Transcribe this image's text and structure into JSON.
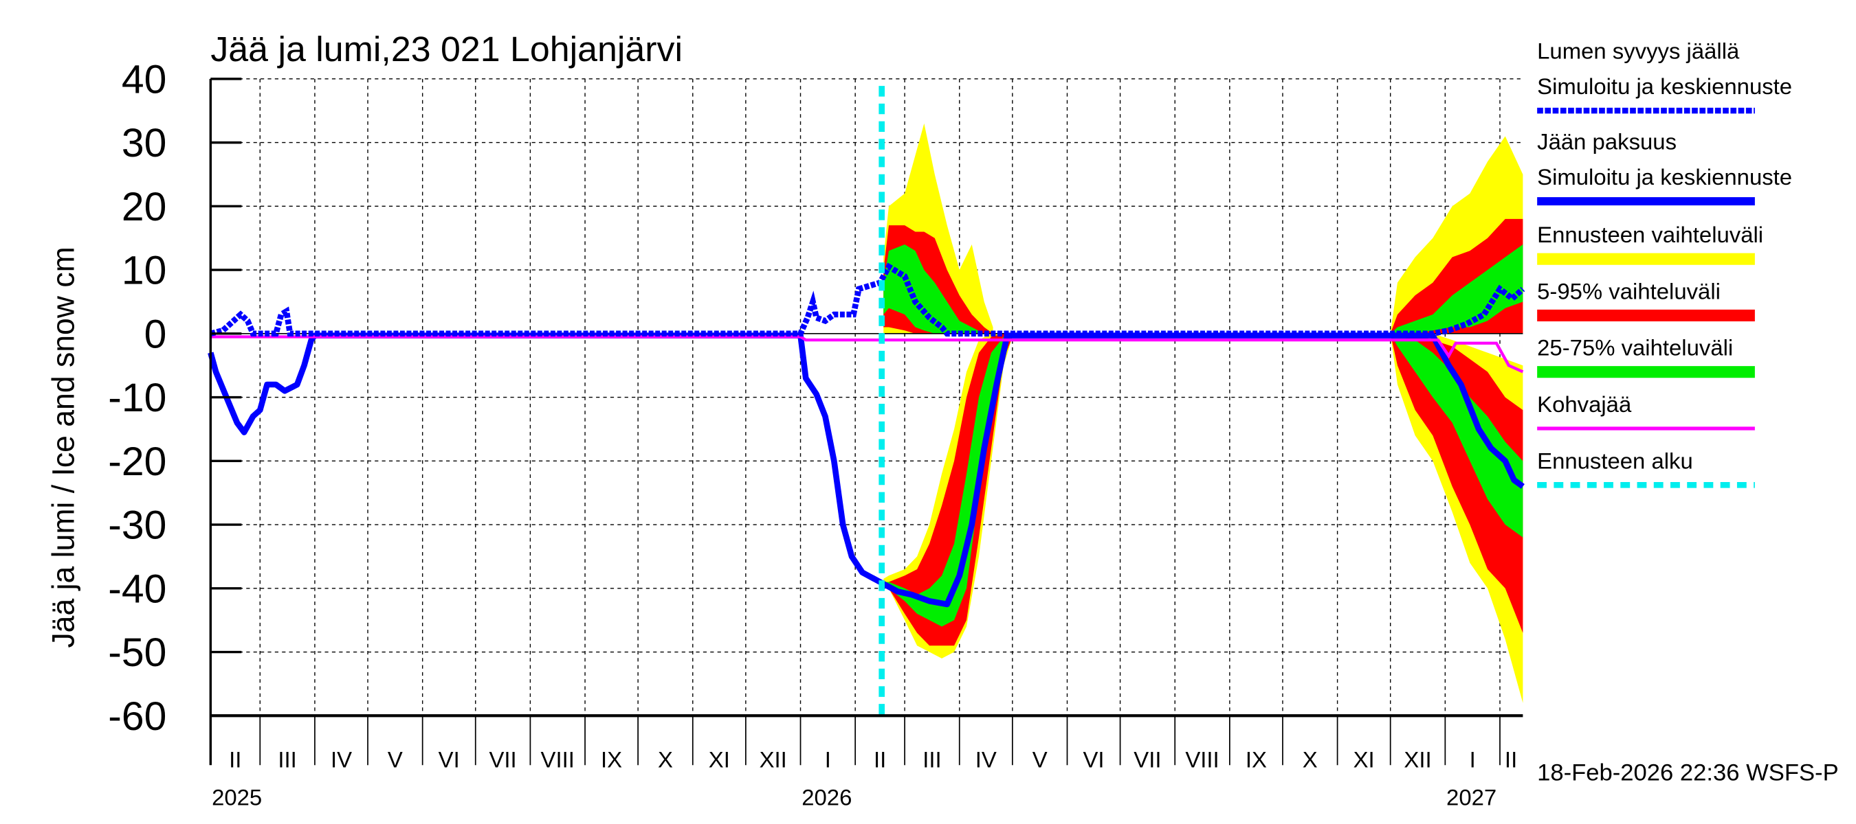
{
  "chart_data": {
    "type": "area",
    "title": "Jää ja lumi,23 021 Lohjanjärvi",
    "ylabel": "Jää ja lumi / Ice and snow    cm",
    "ylim": [
      -60,
      40
    ],
    "yticks": [
      40,
      30,
      20,
      10,
      0,
      -10,
      -20,
      -30,
      -40,
      -50,
      -60
    ],
    "xlim": [
      "2025-02-01",
      "2027-02-14"
    ],
    "grid": true,
    "legend_placement": "right",
    "month_labels": [
      "II",
      "III",
      "IV",
      "V",
      "VI",
      "VII",
      "VIII",
      "IX",
      "X",
      "XI",
      "XII",
      "I",
      "II",
      "III",
      "IV",
      "V",
      "VI",
      "VII",
      "VIII",
      "IX",
      "X",
      "XI",
      "XII",
      "I",
      "II"
    ],
    "year_labels": [
      {
        "date": "2025-02-01",
        "label": "2025"
      },
      {
        "date": "2026-01-01",
        "label": "2026"
      },
      {
        "date": "2027-01-01",
        "label": "2027"
      }
    ],
    "forecast_start": "2026-02-16",
    "footer": "18-Feb-2026 22:36 WSFS-P",
    "colors": {
      "snow": "#0000ff",
      "ice": "#0000ff",
      "range": "#ffff00",
      "p5_95": "#ff0000",
      "p25_75": "#00ee00",
      "slush": "#ff00ff",
      "forecast_start": "#00eeee"
    },
    "legend": [
      {
        "line1": "Lumen syvyys jäällä",
        "line2": "Simuloitu ja keskiennuste",
        "style": "dashed",
        "color": "#0000ff"
      },
      {
        "line1": "Jään paksuus",
        "line2": "Simuloitu ja keskiennuste",
        "style": "solid",
        "color": "#0000ff"
      },
      {
        "line1": "Ennusteen vaihteluväli",
        "style": "band",
        "color": "#ffff00"
      },
      {
        "line1": "5-95% vaihteluväli",
        "style": "band",
        "color": "#ff0000"
      },
      {
        "line1": "25-75% vaihteluväli",
        "style": "band",
        "color": "#00ee00"
      },
      {
        "line1": "Kohvajää",
        "style": "thin",
        "color": "#ff00ff"
      },
      {
        "line1": "Ennusteen alku",
        "style": "dotted",
        "color": "#00eeee"
      }
    ],
    "series": {
      "snow_depth": [
        [
          "2025-02-01",
          0
        ],
        [
          "2025-02-08",
          0.5
        ],
        [
          "2025-02-14",
          2
        ],
        [
          "2025-02-18",
          3
        ],
        [
          "2025-02-22",
          2
        ],
        [
          "2025-02-25",
          0
        ],
        [
          "2025-03-10",
          0
        ],
        [
          "2025-03-13",
          3
        ],
        [
          "2025-03-16",
          3.5
        ],
        [
          "2025-03-18",
          0
        ],
        [
          "2025-12-31",
          0
        ],
        [
          "2026-01-01",
          0
        ],
        [
          "2026-01-05",
          2.5
        ],
        [
          "2026-01-08",
          5
        ],
        [
          "2026-01-10",
          2.5
        ],
        [
          "2026-01-15",
          2
        ],
        [
          "2026-01-20",
          3
        ],
        [
          "2026-01-31",
          3
        ],
        [
          "2026-02-03",
          7
        ],
        [
          "2026-02-15",
          8
        ],
        [
          "2026-02-20",
          10.5
        ],
        [
          "2026-03-01",
          9
        ],
        [
          "2026-03-07",
          5
        ],
        [
          "2026-03-15",
          2.5
        ],
        [
          "2026-03-22",
          1
        ],
        [
          "2026-03-25",
          0
        ],
        [
          "2026-12-25",
          0
        ],
        [
          "2027-01-03",
          0.5
        ],
        [
          "2027-01-13",
          1.5
        ],
        [
          "2027-01-23",
          3
        ],
        [
          "2027-02-01",
          7
        ],
        [
          "2027-02-08",
          5.5
        ],
        [
          "2027-02-14",
          7
        ]
      ],
      "ice_thickness": [
        [
          "2025-02-01",
          -3
        ],
        [
          "2025-02-04",
          -6
        ],
        [
          "2025-02-10",
          -10
        ],
        [
          "2025-02-16",
          -14
        ],
        [
          "2025-02-20",
          -15.5
        ],
        [
          "2025-02-25",
          -13
        ],
        [
          "2025-03-01",
          -12
        ],
        [
          "2025-03-05",
          -8
        ],
        [
          "2025-03-10",
          -8
        ],
        [
          "2025-03-15",
          -9
        ],
        [
          "2025-03-22",
          -8
        ],
        [
          "2025-03-26",
          -5
        ],
        [
          "2025-03-30",
          -1
        ],
        [
          "2025-04-01",
          -0.3
        ],
        [
          "2026-01-01",
          -0.3
        ],
        [
          "2026-01-04",
          -7
        ],
        [
          "2026-01-10",
          -9.5
        ],
        [
          "2026-01-15",
          -13
        ],
        [
          "2026-01-20",
          -20
        ],
        [
          "2026-01-25",
          -30
        ],
        [
          "2026-01-30",
          -35
        ],
        [
          "2026-02-05",
          -37.5
        ],
        [
          "2026-02-15",
          -39
        ],
        [
          "2026-02-25",
          -40.5
        ],
        [
          "2026-03-05",
          -41
        ],
        [
          "2026-03-15",
          -42
        ],
        [
          "2026-03-25",
          -42.5
        ],
        [
          "2026-04-01",
          -38
        ],
        [
          "2026-04-08",
          -30
        ],
        [
          "2026-04-15",
          -18
        ],
        [
          "2026-04-22",
          -8
        ],
        [
          "2026-04-28",
          -0.3
        ],
        [
          "2026-12-25",
          -0.3
        ],
        [
          "2027-01-03",
          -5
        ],
        [
          "2027-01-10",
          -8
        ],
        [
          "2027-01-20",
          -15
        ],
        [
          "2027-01-27",
          -18
        ],
        [
          "2027-02-04",
          -20
        ],
        [
          "2027-02-09",
          -23
        ],
        [
          "2027-02-14",
          -24
        ]
      ],
      "slush_ice": [
        [
          "2025-02-01",
          -0.5
        ],
        [
          "2026-01-01",
          -0.5
        ],
        [
          "2026-01-04",
          -1
        ],
        [
          "2026-12-28",
          -1
        ],
        [
          "2027-01-03",
          -3.5
        ],
        [
          "2027-01-07",
          -1.5
        ],
        [
          "2027-01-30",
          -1.5
        ],
        [
          "2027-02-06",
          -5
        ],
        [
          "2027-02-14",
          -6
        ]
      ]
    },
    "bands_columns": [
      "range_low",
      "p5_low",
      "p25_low",
      "p75_high",
      "p95_high",
      "range_high"
    ],
    "bands": {
      "snow_2026": [
        [
          "2026-02-17",
          0,
          1,
          3,
          8,
          10,
          12
        ],
        [
          "2026-02-20",
          0,
          1,
          4,
          13,
          17,
          20
        ],
        [
          "2026-03-01",
          0,
          0.5,
          3,
          14,
          17,
          22
        ],
        [
          "2026-03-07",
          0,
          0,
          1,
          13,
          16,
          28
        ],
        [
          "2026-03-12",
          0,
          0,
          0.5,
          10,
          16,
          33
        ],
        [
          "2026-03-18",
          0,
          0,
          0,
          8,
          15,
          25
        ],
        [
          "2026-03-25",
          0,
          0,
          0,
          5,
          10,
          17
        ],
        [
          "2026-04-01",
          0,
          0,
          0,
          2,
          6,
          10
        ],
        [
          "2026-04-08",
          0,
          0,
          0,
          1,
          3,
          14
        ],
        [
          "2026-04-15",
          0,
          0,
          0,
          0,
          1,
          5
        ],
        [
          "2026-04-20",
          0,
          0,
          0,
          0,
          0,
          1
        ]
      ],
      "ice_2026": [
        [
          "2026-02-17",
          -39.5,
          -39.5,
          -39.5,
          -39,
          -39,
          -38.5
        ],
        [
          "2026-02-20",
          -40,
          -40,
          -40,
          -39,
          -39,
          -38
        ],
        [
          "2026-03-01",
          -45,
          -44,
          -42,
          -40,
          -38,
          -37
        ],
        [
          "2026-03-08",
          -49,
          -47,
          -44,
          -41,
          -37,
          -35
        ],
        [
          "2026-03-15",
          -50,
          -49,
          -45,
          -40,
          -33,
          -30
        ],
        [
          "2026-03-22",
          -51,
          -49,
          -46,
          -38,
          -27,
          -22
        ],
        [
          "2026-03-29",
          -50,
          -49,
          -45,
          -33,
          -20,
          -15
        ],
        [
          "2026-04-05",
          -46,
          -45,
          -40,
          -22,
          -10,
          -6
        ],
        [
          "2026-04-12",
          -35,
          -32,
          -25,
          -10,
          -3,
          -1
        ],
        [
          "2026-04-19",
          -20,
          -18,
          -10,
          -3,
          -0.5,
          0
        ],
        [
          "2026-04-26",
          -5,
          -4,
          -2,
          -0.5,
          0,
          0
        ],
        [
          "2026-05-01",
          -0.5,
          -0.5,
          -0.5,
          0,
          0,
          0
        ]
      ],
      "snow_2027": [
        [
          "2026-12-01",
          0,
          0,
          0,
          0,
          0,
          0
        ],
        [
          "2026-12-05",
          0,
          0,
          0,
          1,
          3,
          8
        ],
        [
          "2026-12-15",
          0,
          0,
          0,
          2,
          6,
          12
        ],
        [
          "2026-12-25",
          0,
          0,
          0.5,
          3,
          8,
          15
        ],
        [
          "2027-01-05",
          0,
          0,
          1,
          6,
          12,
          20
        ],
        [
          "2027-01-15",
          0,
          0,
          1,
          8,
          13,
          22
        ],
        [
          "2027-01-25",
          0,
          0,
          2,
          10,
          15,
          27
        ],
        [
          "2027-02-04",
          0,
          0,
          4,
          12,
          18,
          31
        ],
        [
          "2027-02-14",
          0,
          0,
          5,
          14,
          18,
          25
        ]
      ],
      "ice_2027": [
        [
          "2026-12-01",
          0,
          0,
          0,
          0,
          0,
          0
        ],
        [
          "2026-12-05",
          -8,
          -5,
          -2,
          -0.5,
          0,
          0
        ],
        [
          "2026-12-15",
          -16,
          -12,
          -6,
          -1,
          0,
          0
        ],
        [
          "2026-12-25",
          -20,
          -16,
          -10,
          -3,
          -1,
          0
        ],
        [
          "2027-01-05",
          -28,
          -24,
          -14,
          -6,
          -2,
          -1
        ],
        [
          "2027-01-15",
          -36,
          -30,
          -20,
          -10,
          -4,
          -2
        ],
        [
          "2027-01-25",
          -40,
          -37,
          -26,
          -13,
          -6,
          -3
        ],
        [
          "2027-02-04",
          -48,
          -40,
          -30,
          -17,
          -10,
          -4
        ],
        [
          "2027-02-14",
          -58,
          -47,
          -32,
          -20,
          -12,
          -5
        ]
      ]
    }
  }
}
